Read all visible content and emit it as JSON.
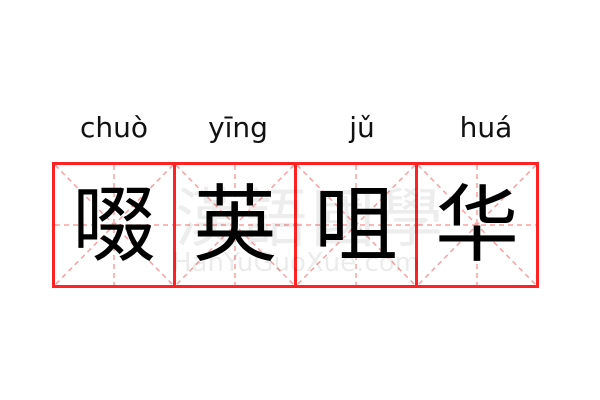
{
  "words": [
    {
      "pinyin": "chuò",
      "char": "啜"
    },
    {
      "pinyin": "yīng",
      "char": "英"
    },
    {
      "pinyin": "jǔ",
      "char": "咀"
    },
    {
      "pinyin": "huá",
      "char": "华"
    }
  ],
  "watermark": {
    "text": "漢語國學",
    "url": "HanYuGuoXue.com"
  },
  "colors": {
    "border": "#ff2222",
    "guide": "#f8a0a0",
    "text": "#000000"
  }
}
